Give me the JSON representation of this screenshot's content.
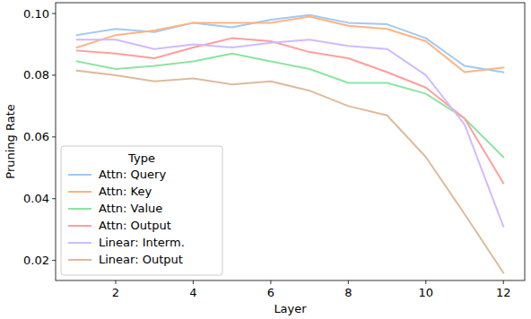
{
  "chart_data": {
    "type": "line",
    "x_label": "Layer",
    "y_label": "Pruning Rate",
    "legend_title": "Type",
    "legend": "lower left",
    "grid": false,
    "x": [
      1,
      2,
      3,
      4,
      5,
      6,
      7,
      8,
      9,
      10,
      11,
      12
    ],
    "xlim": [
      0.45,
      12.55
    ],
    "xticks": [
      2,
      4,
      6,
      8,
      10,
      12
    ],
    "ylim": [
      0.0135,
      0.1035
    ],
    "yticks": [
      0.02,
      0.04,
      0.06,
      0.08,
      {
        "value": 0.1,
        "label": "0.10"
      }
    ],
    "series": [
      {
        "name": "Attn: Query",
        "color": "#a1c9f4",
        "values": [
          0.093,
          0.095,
          0.094,
          0.097,
          0.0955,
          0.098,
          0.0995,
          0.097,
          0.0965,
          0.092,
          0.083,
          0.081
        ]
      },
      {
        "name": "Attn: Key",
        "color": "#ffb482",
        "values": [
          0.089,
          0.093,
          0.0945,
          0.097,
          0.097,
          0.097,
          0.099,
          0.096,
          0.095,
          0.091,
          0.081,
          0.0825
        ]
      },
      {
        "name": "Attn: Value",
        "color": "#8de5a1",
        "values": [
          0.0845,
          0.082,
          0.083,
          0.0845,
          0.087,
          0.0845,
          0.082,
          0.0775,
          0.0775,
          0.074,
          0.066,
          0.0535
        ]
      },
      {
        "name": "Attn: Output",
        "color": "#ff9f9b",
        "values": [
          0.088,
          0.087,
          0.0855,
          0.089,
          0.092,
          0.091,
          0.0875,
          0.0855,
          0.081,
          0.076,
          0.066,
          0.045
        ]
      },
      {
        "name": "Linear: Interm.",
        "color": "#d0bbff",
        "values": [
          0.0915,
          0.0915,
          0.0885,
          0.09,
          0.089,
          0.0905,
          0.0915,
          0.0895,
          0.0885,
          0.08,
          0.064,
          0.031
        ]
      },
      {
        "name": "Linear: Output",
        "color": "#debb9b",
        "values": [
          0.0815,
          0.08,
          0.078,
          0.079,
          0.077,
          0.078,
          0.075,
          0.07,
          0.067,
          0.0535,
          0.035,
          0.016
        ]
      }
    ]
  }
}
